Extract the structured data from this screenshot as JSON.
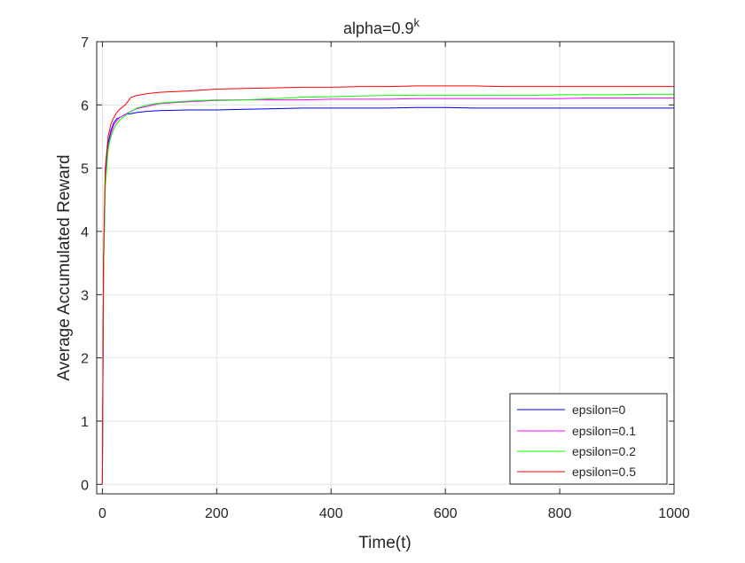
{
  "chart_data": {
    "type": "line",
    "title_main": "alpha=0.9",
    "title_sup": "k",
    "xlabel": "Time(t)",
    "ylabel": "Average Accumulated Reward",
    "xlim": [
      -10,
      1000
    ],
    "ylim": [
      -0.15,
      7
    ],
    "grid": true,
    "legend_position": "bottom-right",
    "x_ticks": [
      0,
      200,
      400,
      600,
      800,
      1000
    ],
    "y_ticks": [
      0,
      1,
      2,
      3,
      4,
      5,
      6,
      7
    ],
    "series": [
      {
        "name": "epsilon=0",
        "color": "#0000ff",
        "x": [
          0,
          2,
          5,
          10,
          15,
          20,
          25,
          30,
          40,
          50,
          60,
          80,
          100,
          150,
          200,
          250,
          300,
          350,
          400,
          450,
          500,
          550,
          600,
          650,
          700,
          750,
          800,
          850,
          900,
          950,
          1000
        ],
        "y": [
          0,
          3.5,
          4.9,
          5.4,
          5.6,
          5.72,
          5.78,
          5.8,
          5.85,
          5.86,
          5.88,
          5.9,
          5.91,
          5.92,
          5.92,
          5.93,
          5.94,
          5.95,
          5.95,
          5.95,
          5.95,
          5.96,
          5.96,
          5.95,
          5.95,
          5.95,
          5.95,
          5.95,
          5.95,
          5.95,
          5.95
        ]
      },
      {
        "name": "epsilon=0.1",
        "color": "#ff00ff",
        "x": [
          0,
          2,
          5,
          10,
          15,
          20,
          25,
          30,
          40,
          50,
          60,
          80,
          100,
          150,
          200,
          250,
          300,
          350,
          400,
          450,
          500,
          550,
          600,
          650,
          700,
          750,
          800,
          850,
          900,
          950,
          1000
        ],
        "y": [
          0,
          3.4,
          4.8,
          5.3,
          5.55,
          5.68,
          5.75,
          5.8,
          5.85,
          5.9,
          5.94,
          5.98,
          6.02,
          6.05,
          6.07,
          6.08,
          6.08,
          6.08,
          6.09,
          6.09,
          6.09,
          6.1,
          6.1,
          6.1,
          6.1,
          6.1,
          6.1,
          6.11,
          6.11,
          6.11,
          6.11
        ]
      },
      {
        "name": "epsilon=0.2",
        "color": "#00ff00",
        "x": [
          0,
          2,
          5,
          10,
          15,
          20,
          25,
          30,
          40,
          50,
          60,
          80,
          100,
          150,
          200,
          250,
          300,
          350,
          400,
          450,
          500,
          550,
          600,
          650,
          700,
          750,
          800,
          850,
          900,
          950,
          1000
        ],
        "y": [
          0,
          3.3,
          4.7,
          5.3,
          5.5,
          5.62,
          5.7,
          5.76,
          5.83,
          5.9,
          5.95,
          6.0,
          6.03,
          6.06,
          6.08,
          6.08,
          6.1,
          6.12,
          6.13,
          6.14,
          6.15,
          6.15,
          6.15,
          6.15,
          6.15,
          6.15,
          6.16,
          6.16,
          6.16,
          6.17,
          6.17
        ]
      },
      {
        "name": "epsilon=0.5",
        "color": "#ff0000",
        "x": [
          0,
          2,
          5,
          10,
          15,
          20,
          25,
          30,
          40,
          50,
          60,
          80,
          100,
          150,
          200,
          250,
          300,
          350,
          400,
          450,
          500,
          550,
          600,
          650,
          700,
          750,
          800,
          850,
          900,
          950,
          1000
        ],
        "y": [
          0,
          3.6,
          5.0,
          5.5,
          5.7,
          5.8,
          5.88,
          5.93,
          6.0,
          6.12,
          6.15,
          6.18,
          6.2,
          6.22,
          6.25,
          6.26,
          6.27,
          6.28,
          6.28,
          6.29,
          6.29,
          6.3,
          6.3,
          6.3,
          6.29,
          6.29,
          6.29,
          6.29,
          6.29,
          6.29,
          6.29
        ]
      }
    ]
  }
}
